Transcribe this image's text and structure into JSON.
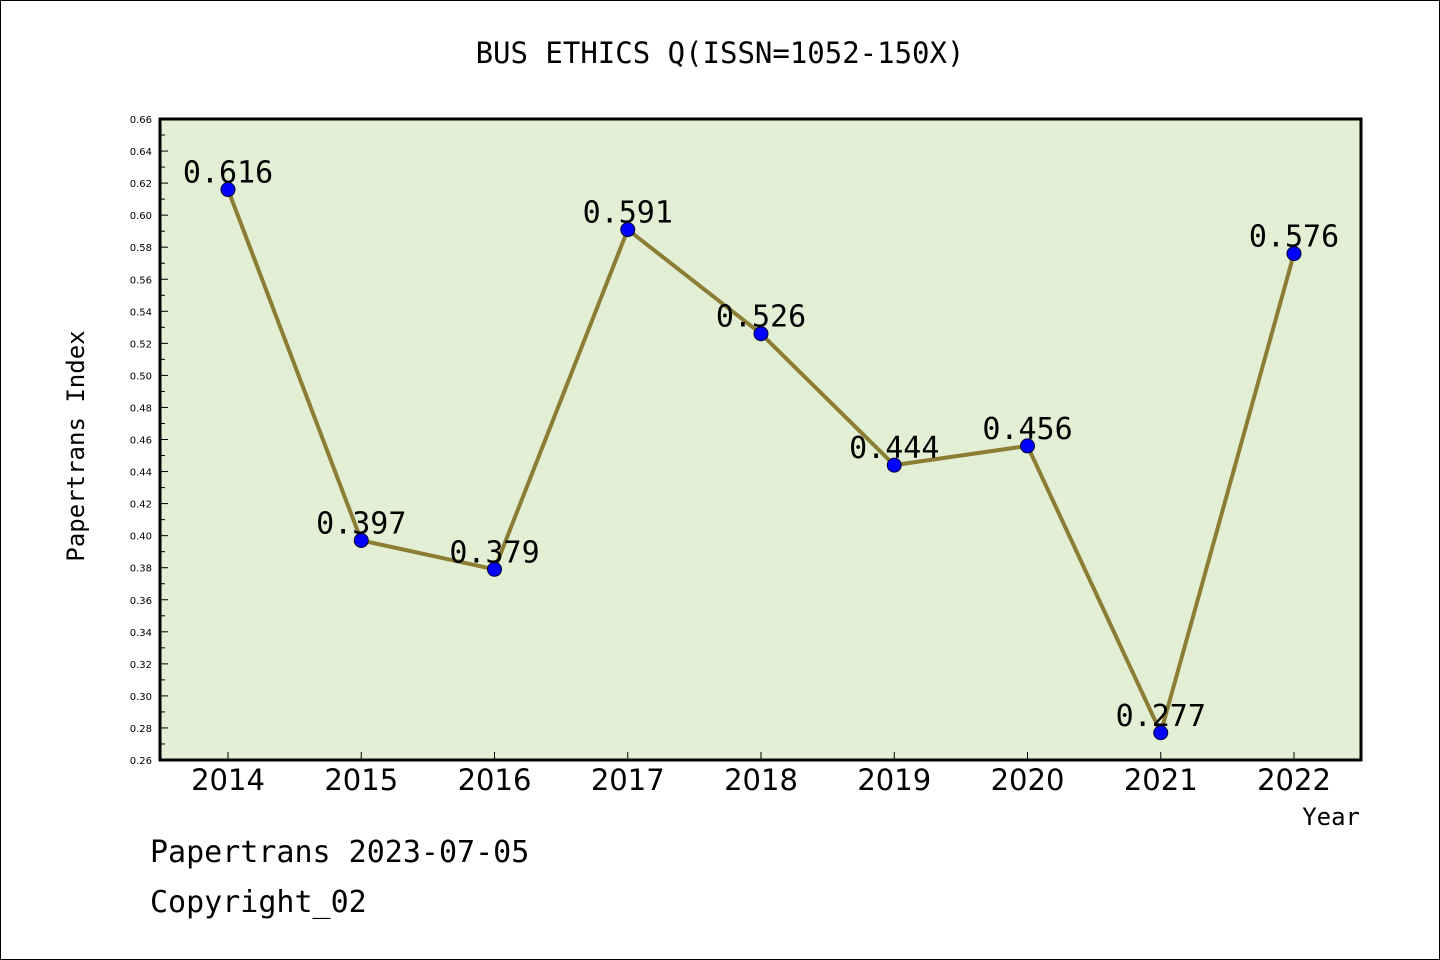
{
  "chart_data": {
    "type": "line",
    "title": "BUS ETHICS Q(ISSN=1052-150X)",
    "xlabel": "Year",
    "ylabel": "Papertrans Index",
    "categories": [
      "2014",
      "2015",
      "2016",
      "2017",
      "2018",
      "2019",
      "2020",
      "2021",
      "2022"
    ],
    "series": [
      {
        "values": [
          0.616,
          0.397,
          0.379,
          0.591,
          0.526,
          0.444,
          0.456,
          0.277,
          0.576
        ],
        "labels": [
          "0.616",
          "0.397",
          "0.379",
          "0.591",
          "0.526",
          "0.444",
          "0.456",
          "0.277",
          "0.576"
        ]
      }
    ],
    "ylim": [
      0.26,
      0.66
    ],
    "y_ticks": [
      "0.26",
      "0.28",
      "0.30",
      "0.32",
      "0.34",
      "0.36",
      "0.38",
      "0.40",
      "0.42",
      "0.44",
      "0.46",
      "0.48",
      "0.50",
      "0.52",
      "0.54",
      "0.56",
      "0.58",
      "0.60",
      "0.62",
      "0.64",
      "0.66"
    ],
    "grid": false,
    "colors": {
      "plot_background": "#e2efd4",
      "line": "#8b7d33",
      "marker": "#0000ff"
    }
  },
  "footer": {
    "line1": "Papertrans 2023-07-05",
    "line2": "Copyright_02"
  }
}
